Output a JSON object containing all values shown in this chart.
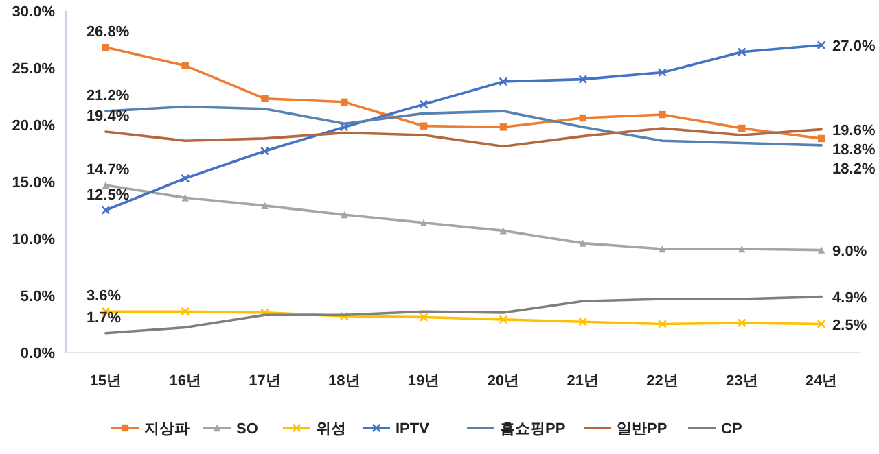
{
  "chart_data": {
    "type": "line",
    "categories": [
      "15년",
      "16년",
      "17년",
      "18년",
      "19년",
      "20년",
      "21년",
      "22년",
      "23년",
      "24년"
    ],
    "ylim": [
      0,
      30
    ],
    "yticks": [
      {
        "value": 0,
        "label": "0.0%"
      },
      {
        "value": 5,
        "label": "5.0%"
      },
      {
        "value": 10,
        "label": "10.0%"
      },
      {
        "value": 15,
        "label": "15.0%"
      },
      {
        "value": 20,
        "label": "20.0%"
      },
      {
        "value": 25,
        "label": "25.0%"
      },
      {
        "value": 30,
        "label": "30.0%"
      }
    ],
    "grid": false,
    "legend": "bottom",
    "series": [
      {
        "name": "지상파",
        "color": "#ed7d31",
        "marker": "square",
        "values": [
          26.8,
          25.2,
          22.3,
          22.0,
          19.9,
          19.8,
          20.6,
          20.9,
          19.7,
          18.8
        ],
        "value_labels": [
          "26.8%",
          null,
          null,
          null,
          null,
          null,
          null,
          null,
          null,
          "18.8%"
        ]
      },
      {
        "name": "SO",
        "color": "#a5a5a5",
        "marker": "triangle",
        "values": [
          14.7,
          13.6,
          12.9,
          12.1,
          11.4,
          10.7,
          9.6,
          9.1,
          9.1,
          9.0
        ],
        "value_labels": [
          "14.7%",
          null,
          null,
          null,
          null,
          null,
          null,
          null,
          null,
          "9.0%"
        ]
      },
      {
        "name": "위성",
        "color": "#ffc000",
        "marker": "cross",
        "values": [
          3.6,
          3.6,
          3.5,
          3.2,
          3.1,
          2.9,
          2.7,
          2.5,
          2.6,
          2.5
        ],
        "value_labels": [
          "3.6%",
          null,
          null,
          null,
          null,
          null,
          null,
          null,
          null,
          "2.5%"
        ]
      },
      {
        "name": "IPTV",
        "color": "#4472c4",
        "marker": "cross",
        "values": [
          12.5,
          15.3,
          17.7,
          19.8,
          21.8,
          23.8,
          24.0,
          24.6,
          26.4,
          27.0
        ],
        "value_labels": [
          "12.5%",
          null,
          null,
          null,
          null,
          null,
          null,
          null,
          null,
          "27.0%"
        ]
      },
      {
        "name": "홈쇼핑PP",
        "color": "#5a82b0",
        "marker": "none",
        "values": [
          21.2,
          21.6,
          21.4,
          20.1,
          21.0,
          21.2,
          19.8,
          18.6,
          18.4,
          18.2
        ],
        "value_labels": [
          "21.2%",
          null,
          null,
          null,
          null,
          null,
          null,
          null,
          null,
          "18.2%"
        ]
      },
      {
        "name": "일반PP",
        "color": "#b5673f",
        "marker": "none",
        "values": [
          19.4,
          18.6,
          18.8,
          19.3,
          19.1,
          18.1,
          19.0,
          19.7,
          19.1,
          19.6
        ],
        "value_labels": [
          "19.4%",
          null,
          null,
          null,
          null,
          null,
          null,
          null,
          null,
          "19.6%"
        ]
      },
      {
        "name": "CP",
        "color": "#7f7f7f",
        "marker": "none",
        "values": [
          1.7,
          2.2,
          3.3,
          3.3,
          3.6,
          3.5,
          4.5,
          4.7,
          4.7,
          4.9
        ],
        "value_labels": [
          "1.7%",
          null,
          null,
          null,
          null,
          null,
          null,
          null,
          null,
          "4.9%"
        ]
      }
    ]
  }
}
